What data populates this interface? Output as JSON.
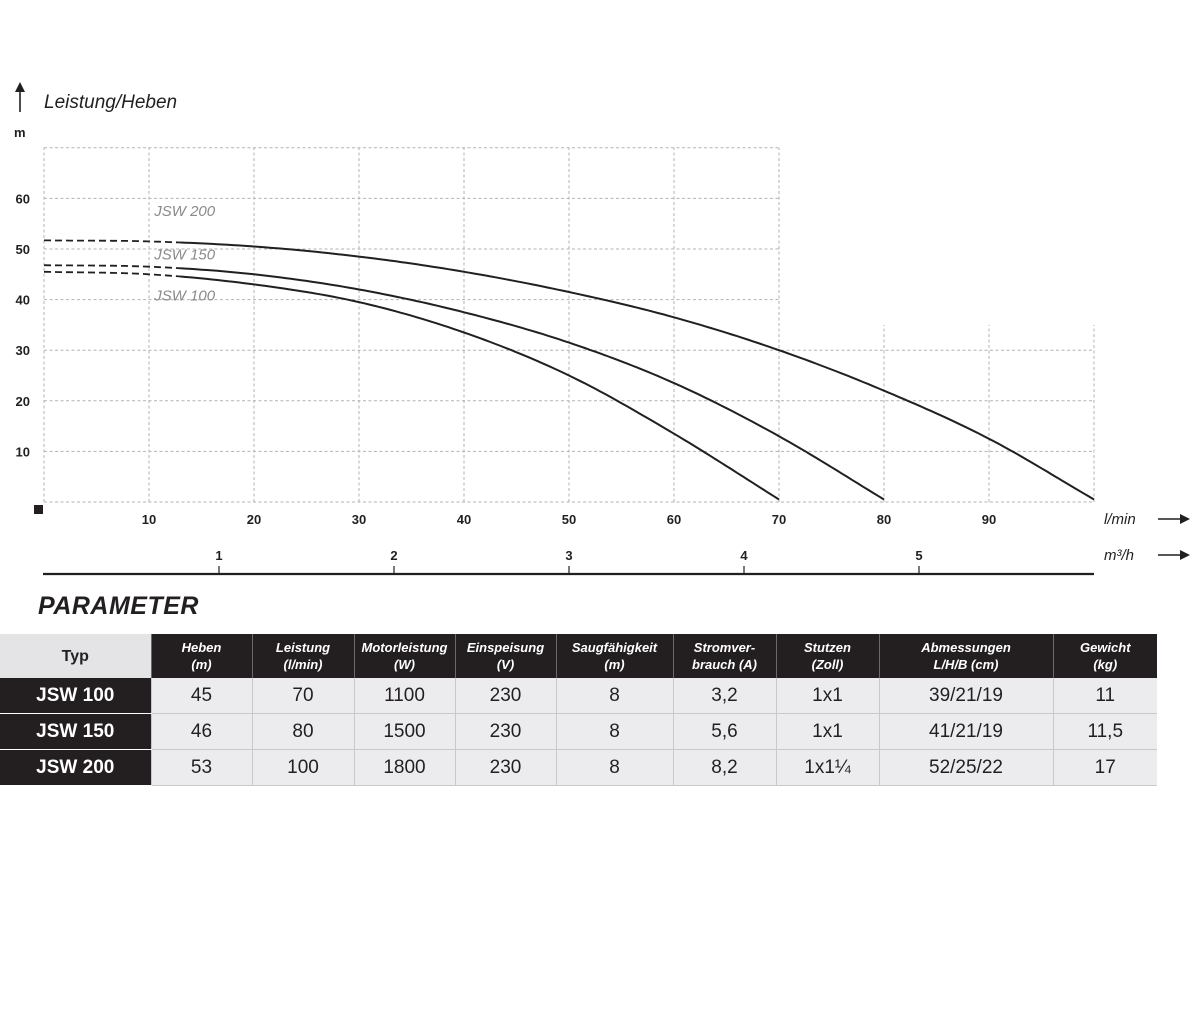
{
  "chart_data": {
    "type": "line",
    "ylabel": "Leistung/Heben",
    "y_unit": "m",
    "x_unit": "l/min",
    "x2_unit": "m³/h",
    "xlim": [
      0,
      100
    ],
    "ylim": [
      0,
      70
    ],
    "x_ticks": [
      10,
      20,
      30,
      40,
      50,
      60,
      70,
      80,
      90
    ],
    "y_ticks": [
      10,
      20,
      30,
      40,
      50,
      60
    ],
    "x2_ticks": [
      1,
      2,
      3,
      4,
      5
    ],
    "grid": true,
    "series": [
      {
        "name": "JSW 200",
        "x": [
          0,
          10,
          20,
          30,
          40,
          50,
          60,
          70,
          80,
          90,
          100
        ],
        "y": [
          51.7,
          51.5,
          50.5,
          48.5,
          45.5,
          41.5,
          36.5,
          30.0,
          22.0,
          12.5,
          0.5
        ]
      },
      {
        "name": "JSW 150",
        "x": [
          0,
          10,
          20,
          30,
          40,
          50,
          60,
          70,
          80
        ],
        "y": [
          46.8,
          46.5,
          45.0,
          42.0,
          37.5,
          31.5,
          23.5,
          13.0,
          0.5
        ]
      },
      {
        "name": "JSW 100",
        "x": [
          0,
          10,
          20,
          30,
          40,
          50,
          60,
          70
        ],
        "y": [
          45.5,
          45.0,
          43.0,
          39.5,
          33.5,
          25.0,
          13.5,
          0.5
        ]
      }
    ]
  },
  "parameter": {
    "title": "PARAMETER",
    "headers": {
      "typ": "Typ",
      "heben": [
        "Heben",
        "(m)"
      ],
      "leistung": [
        "Leistung",
        "(l/min)"
      ],
      "motorleistung": [
        "Motorleistung",
        "(W)"
      ],
      "einspeisung": [
        "Einspeisung",
        "(V)"
      ],
      "saug": [
        "Saugfähigkeit",
        "(m)"
      ],
      "strom": [
        "Stromver-",
        "brauch (A)"
      ],
      "stutzen": [
        "Stutzen",
        "(Zoll)"
      ],
      "abmessungen": [
        "Abmessungen",
        "L/H/B (cm)"
      ],
      "gewicht": [
        "Gewicht",
        "(kg)"
      ]
    },
    "rows": [
      {
        "typ": "JSW 100",
        "heben": "45",
        "leistung": "70",
        "motor": "1100",
        "einspeisung": "230",
        "saug": "8",
        "strom": "3,2",
        "stutzen": "1x1",
        "abm": "39/21/19",
        "gewicht": "11"
      },
      {
        "typ": "JSW 150",
        "heben": "46",
        "leistung": "80",
        "motor": "1500",
        "einspeisung": "230",
        "saug": "8",
        "strom": "5,6",
        "stutzen": "1x1",
        "abm": "41/21/19",
        "gewicht": "11,5"
      },
      {
        "typ": "JSW 200",
        "heben": "53",
        "leistung": "100",
        "motor": "1800",
        "einspeisung": "230",
        "saug": "8",
        "strom": "8,2",
        "stutzen": "1x1¼",
        "abm": "52/25/22",
        "gewicht": "17"
      }
    ]
  }
}
